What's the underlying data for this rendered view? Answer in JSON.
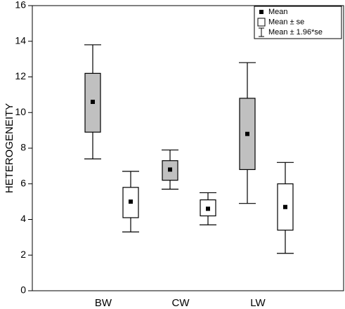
{
  "chart_data": {
    "type": "box",
    "y_label": "HETEROGENEITY",
    "categories": [
      "BW",
      "CW",
      "LW"
    ],
    "ylim": [
      0,
      16
    ],
    "yticks": [
      0,
      2,
      4,
      6,
      8,
      10,
      12,
      14,
      16
    ],
    "legend": [
      "Mean",
      "Mean ± se",
      "Mean ± 1.96*se"
    ],
    "legend_position": "upper right",
    "series": [
      {
        "color": "#c0c0c0",
        "mean": [
          10.6,
          6.8,
          8.8
        ],
        "se_low": [
          8.9,
          6.2,
          6.8
        ],
        "se_high": [
          12.2,
          7.3,
          10.8
        ],
        "whisker_low": [
          7.4,
          5.7,
          4.9
        ],
        "whisker_high": [
          13.8,
          7.9,
          12.8
        ]
      },
      {
        "color": "#ffffff",
        "mean": [
          5.0,
          4.6,
          4.7
        ],
        "se_low": [
          4.1,
          4.2,
          3.4
        ],
        "se_high": [
          5.8,
          5.1,
          6.0
        ],
        "whisker_low": [
          3.3,
          3.7,
          2.1
        ],
        "whisker_high": [
          6.7,
          5.5,
          7.2
        ]
      }
    ]
  }
}
